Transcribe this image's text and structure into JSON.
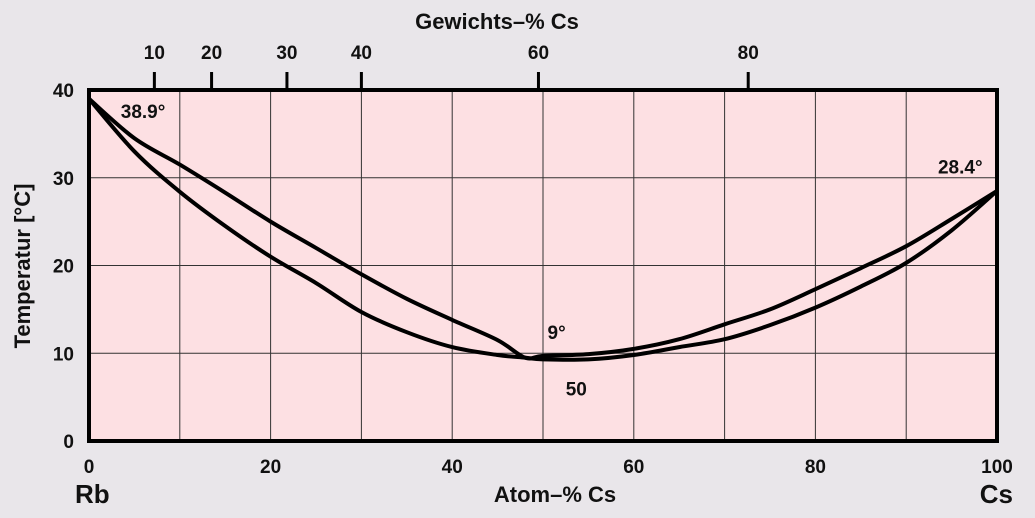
{
  "chart_data": {
    "type": "line",
    "title": "",
    "xlabel": "Atom–% Cs",
    "ylabel": "Temperatur [°C]",
    "top_xlabel": "Gewichts–% Cs",
    "xlim": [
      0,
      100
    ],
    "ylim": [
      0,
      40
    ],
    "x_ticks": [
      "0",
      "20",
      "40",
      "60",
      "80",
      "100"
    ],
    "y_ticks": [
      "0",
      "10",
      "20",
      "30",
      "40"
    ],
    "top_ticks": [
      {
        "label": "10",
        "at_x": 7.2
      },
      {
        "label": "20",
        "at_x": 13.5
      },
      {
        "label": "30",
        "at_x": 21.8
      },
      {
        "label": "40",
        "at_x": 30.0
      },
      {
        "label": "60",
        "at_x": 49.5
      },
      {
        "label": "80",
        "at_x": 72.6
      }
    ],
    "grid": true,
    "end_labels": {
      "left": "Rb",
      "right": "Cs"
    },
    "annotations": [
      {
        "text": "38.9°",
        "x": 3.5,
        "y": 36.8
      },
      {
        "text": "28.4°",
        "x": 93.5,
        "y": 30.5
      },
      {
        "text": "9°",
        "x": 50.5,
        "y": 11.6
      },
      {
        "text": "50",
        "x": 52.5,
        "y": 5.2
      }
    ],
    "series": [
      {
        "x": [
          0,
          5,
          10,
          15,
          20,
          25,
          30,
          35,
          40,
          45,
          48,
          50,
          55,
          60,
          65,
          70,
          75,
          80,
          85,
          90,
          95,
          100
        ],
        "y": [
          39.0,
          34.5,
          31.5,
          28.3,
          25.0,
          22.0,
          19.0,
          16.2,
          13.8,
          11.5,
          9.5,
          9.7,
          9.9,
          10.5,
          11.6,
          13.3,
          15.0,
          17.3,
          19.7,
          22.2,
          25.3,
          28.5
        ]
      },
      {
        "x": [
          0,
          5,
          10,
          15,
          20,
          25,
          30,
          35,
          40,
          45,
          48,
          50,
          55,
          60,
          65,
          70,
          75,
          80,
          85,
          90,
          95,
          100
        ],
        "y": [
          39.0,
          33.0,
          28.4,
          24.5,
          21.0,
          18.0,
          14.7,
          12.4,
          10.7,
          9.8,
          9.5,
          9.3,
          9.3,
          9.8,
          10.7,
          11.6,
          13.2,
          15.2,
          17.6,
          20.3,
          24.0,
          28.5
        ]
      }
    ]
  }
}
